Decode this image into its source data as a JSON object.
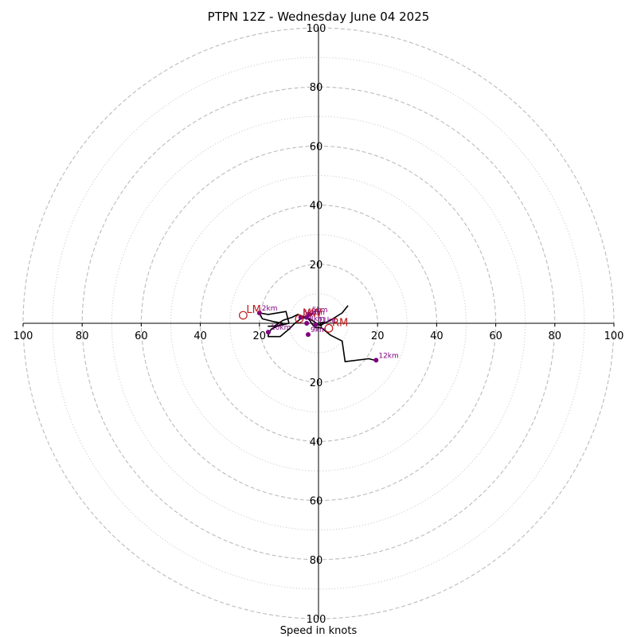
{
  "chart_data": {
    "type": "hodograph",
    "title": "PTPN 12Z - Wednesday June 04 2025",
    "xlabel": "Speed in knots",
    "units": "knots",
    "rings_major": [
      20,
      40,
      60,
      80,
      100
    ],
    "rings_minor": [
      10,
      30,
      50,
      70,
      90
    ],
    "axis_max": 100,
    "tick_labels": [
      "100",
      "80",
      "60",
      "40",
      "20",
      "20",
      "40",
      "60",
      "80",
      "100"
    ],
    "hodograph_trace": [
      [
        10,
        6
      ],
      [
        8,
        3.5
      ],
      [
        4,
        1
      ],
      [
        1,
        -0.5
      ],
      [
        2,
        0.5
      ],
      [
        0.5,
        0
      ],
      [
        1,
        -1
      ],
      [
        -3,
        1.5
      ],
      [
        -7,
        3
      ],
      [
        -9,
        2
      ],
      [
        -12,
        1
      ],
      [
        -15,
        -1
      ],
      [
        -17,
        -1
      ],
      [
        -14,
        -1
      ],
      [
        -10,
        0
      ],
      [
        -11,
        4
      ],
      [
        -17,
        3
      ],
      [
        -20,
        3.5
      ],
      [
        -19,
        1.5
      ],
      [
        -15,
        0.5
      ],
      [
        -12,
        0
      ],
      [
        -16,
        -2
      ],
      [
        -17,
        -4
      ],
      [
        -17,
        -4.5
      ],
      [
        -13,
        -4.5
      ],
      [
        -10,
        -2
      ],
      [
        -8,
        0
      ],
      [
        -6,
        1.5
      ],
      [
        -4,
        2
      ],
      [
        -3,
        1
      ],
      [
        -2,
        -0.5
      ],
      [
        -1,
        -1.5
      ],
      [
        1,
        -1.5
      ],
      [
        4,
        -4
      ],
      [
        8,
        -6
      ],
      [
        9,
        -13
      ],
      [
        17,
        -12
      ],
      [
        19,
        -12.5
      ]
    ],
    "height_markers": [
      {
        "label": "2km",
        "u": -20,
        "v": 3.5
      },
      {
        "label": "4km",
        "u": -4,
        "v": 2
      },
      {
        "label": "5km",
        "u": -3,
        "v": 3
      },
      {
        "label": "6km",
        "u": -6,
        "v": 2
      },
      {
        "label": "8km",
        "u": -4,
        "v": 0
      },
      {
        "label": "9km",
        "u": -3.5,
        "v": -3.8
      },
      {
        "label": "10km",
        "u": -17,
        "v": -3
      },
      {
        "label": "11km",
        "u": -1,
        "v": -0.5
      },
      {
        "label": "12km",
        "u": 19.5,
        "v": -12.5
      }
    ],
    "storm_motions": [
      {
        "label": "LM",
        "u": -25.5,
        "v": 2.7
      },
      {
        "label": "RM",
        "u": 3.5,
        "v": -1.7
      },
      {
        "label": "MW",
        "u": -6.5,
        "v": 1.5
      }
    ],
    "colors": {
      "trace": "#000000",
      "markers": "#800080",
      "motion": "#c01818",
      "grid": "#bbbbbb"
    }
  }
}
